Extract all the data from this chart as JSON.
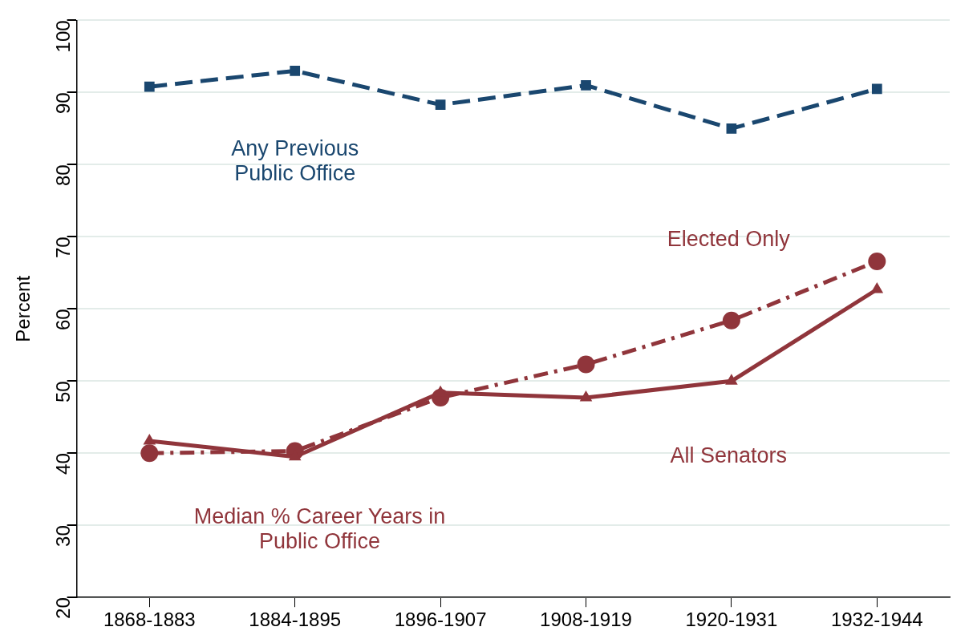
{
  "chart_data": {
    "type": "line",
    "ylabel": "Percent",
    "categories": [
      "1868-1883",
      "1884-1895",
      "1896-1907",
      "1908-1919",
      "1920-1931",
      "1932-1944"
    ],
    "series": [
      {
        "name": "Any Previous Public Office",
        "color": "#1a476f",
        "marker": "square",
        "line_style": "dashed",
        "values": [
          90.8,
          93.0,
          88.3,
          91.0,
          85.0,
          90.5
        ]
      },
      {
        "name": "Elected Only",
        "color": "#90353b",
        "marker": "circle",
        "line_style": "dashdot",
        "values": [
          40.0,
          40.3,
          47.7,
          52.3,
          58.4,
          66.6
        ]
      },
      {
        "name": "All Senators",
        "color": "#90353b",
        "marker": "triangle",
        "line_style": "solid",
        "values": [
          41.7,
          39.5,
          48.4,
          47.7,
          50.0,
          62.7
        ]
      }
    ],
    "annotations": [
      "Median % Career Years in Public Office"
    ],
    "ylim": [
      20,
      100
    ],
    "yticks": [
      20,
      30,
      40,
      50,
      60,
      70,
      80,
      90,
      100
    ],
    "grid": "y",
    "legend": false
  }
}
